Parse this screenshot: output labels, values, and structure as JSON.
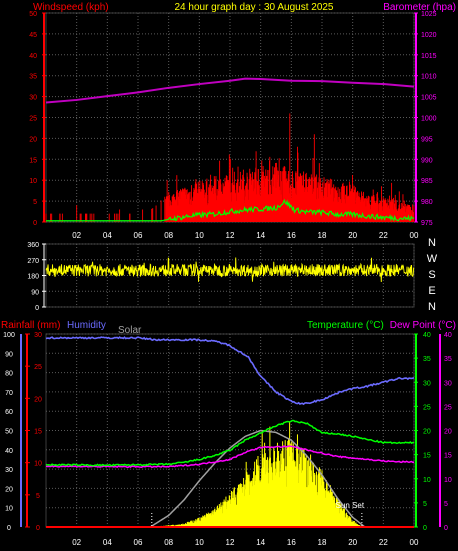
{
  "header": {
    "left_label": "Windspeed (kph)",
    "title": "24 hour graph day : 30 August 2025",
    "right_label": "Barometer (hpa)"
  },
  "colors": {
    "bg": "#000000",
    "grid": "#5a5a5a",
    "white": "#ffffff",
    "red": "#ff0000",
    "magenta": "#ff00ff",
    "yellow": "#ffff00",
    "green": "#00c800",
    "gust_green": "#00ff00",
    "blue": "#6b6bff",
    "gray": "#a0a0a0",
    "axis_dark": "#3c3c3c"
  },
  "x_ticks": [
    "02",
    "04",
    "06",
    "08",
    "10",
    "12",
    "14",
    "16",
    "18",
    "20",
    "22",
    "00"
  ],
  "chart_data": [
    {
      "type": "line",
      "name": "wind-baro",
      "x_hours_range": [
        0,
        24
      ],
      "left_axis": {
        "label": "Windspeed (kph)",
        "ticks": [
          "0",
          "5",
          "10",
          "15",
          "20",
          "25",
          "30",
          "35",
          "40",
          "45",
          "50"
        ],
        "range": [
          0,
          50
        ]
      },
      "right_axis": {
        "label": "Barometer (hpa)",
        "ticks": [
          "975",
          "980",
          "985",
          "990",
          "995",
          "1000",
          "1005",
          "1010",
          "1015",
          "1020",
          "1025"
        ],
        "range": [
          975,
          1025
        ]
      },
      "series": [
        {
          "key": "barometer",
          "axis": "right",
          "color": "magenta",
          "points": [
            [
              0,
              1003.6
            ],
            [
              2,
              1004.2
            ],
            [
              4,
              1005.1
            ],
            [
              6,
              1006.0
            ],
            [
              8,
              1007.1
            ],
            [
              10,
              1008.0
            ],
            [
              12,
              1008.8
            ],
            [
              13,
              1009.3
            ],
            [
              14,
              1009.2
            ],
            [
              16,
              1008.8
            ],
            [
              18,
              1008.7
            ],
            [
              20,
              1008.3
            ],
            [
              22,
              1008.0
            ],
            [
              24,
              1007.4
            ]
          ]
        },
        {
          "key": "wind_gust",
          "axis": "left",
          "color": "red",
          "style": "spiky",
          "envelope": [
            [
              0,
              2
            ],
            [
              6.5,
              2
            ],
            [
              7.2,
              4
            ],
            [
              8,
              7
            ],
            [
              9,
              9
            ],
            [
              10,
              10
            ],
            [
              11,
              11
            ],
            [
              12,
              12
            ],
            [
              13,
              13
            ],
            [
              14,
              13
            ],
            [
              15,
              14
            ],
            [
              16,
              13
            ],
            [
              17,
              12
            ],
            [
              18,
              11
            ],
            [
              19,
              10
            ],
            [
              20,
              9
            ],
            [
              21,
              7
            ],
            [
              22,
              6
            ],
            [
              23,
              5
            ],
            [
              24,
              4
            ]
          ],
          "spikes": [
            [
              0.3,
              2
            ],
            [
              0.9,
              2
            ],
            [
              2.0,
              4
            ],
            [
              2.6,
              2
            ],
            [
              4.8,
              3
            ],
            [
              6.3,
              3
            ],
            [
              7.9,
              10
            ],
            [
              13.7,
              12
            ],
            [
              15.9,
              26
            ],
            [
              16.4,
              18
            ],
            [
              17.5,
              21
            ]
          ]
        },
        {
          "key": "wind_avg",
          "axis": "left",
          "color": "gust_green",
          "points": [
            [
              0,
              0.3
            ],
            [
              7.5,
              0.3
            ],
            [
              8.5,
              0.9
            ],
            [
              9.5,
              1.5
            ],
            [
              11,
              1.9
            ],
            [
              12,
              2.5
            ],
            [
              13,
              2.9
            ],
            [
              14,
              3.1
            ],
            [
              15,
              3.4
            ],
            [
              15.6,
              4.9
            ],
            [
              16.2,
              2.9
            ],
            [
              17,
              2.4
            ],
            [
              18,
              2.3
            ],
            [
              19,
              1.8
            ],
            [
              20,
              1.8
            ],
            [
              21,
              1.4
            ],
            [
              22,
              1.1
            ],
            [
              23,
              0.9
            ],
            [
              24,
              0.8
            ]
          ]
        }
      ]
    },
    {
      "type": "line",
      "name": "wind-direction",
      "left_axis": {
        "ticks": [
          "360",
          "270",
          "180",
          "90",
          "0"
        ],
        "range": [
          0,
          360
        ]
      },
      "compass": [
        "N",
        "W",
        "S",
        "E",
        "N"
      ],
      "series": [
        {
          "key": "direction",
          "color": "yellow",
          "mean": 210,
          "spread": 35
        }
      ]
    },
    {
      "type": "line",
      "name": "rain-humidity-temp",
      "labels": {
        "rain": "Rainfall (mm)",
        "humidity": "Humidity",
        "solar": "Solar",
        "temp": "Temperature (°C)",
        "dew": "Dew Point (°C)",
        "sunset": "Sun Set"
      },
      "humidity_axis": {
        "ticks": [
          "0",
          "10",
          "20",
          "30",
          "40",
          "50",
          "60",
          "70",
          "80",
          "90",
          "100"
        ],
        "range": [
          0,
          100
        ]
      },
      "rain_axis": {
        "ticks": [
          "0",
          "5",
          "10",
          "15",
          "20",
          "25",
          "30"
        ],
        "range": [
          0,
          30
        ]
      },
      "temp_axis": {
        "ticks": [
          "0",
          "5",
          "10",
          "15",
          "20",
          "25",
          "30",
          "35",
          "40"
        ],
        "range": [
          0,
          40
        ]
      },
      "dew_axis": {
        "ticks": [
          "0",
          "5",
          "10",
          "15",
          "20",
          "25",
          "30",
          "35",
          "40"
        ],
        "range": [
          0,
          40
        ]
      },
      "series": [
        {
          "key": "humidity",
          "axis": "humidity",
          "color": "blue",
          "points": [
            [
              0,
              98
            ],
            [
              6,
              98
            ],
            [
              7.2,
              97
            ],
            [
              10,
              97
            ],
            [
              11.2,
              96
            ],
            [
              12,
              94
            ],
            [
              13.2,
              88
            ],
            [
              14,
              78
            ],
            [
              15,
              70
            ],
            [
              15.8,
              66
            ],
            [
              16.3,
              64
            ],
            [
              17,
              64
            ],
            [
              18,
              66
            ],
            [
              19.5,
              71
            ],
            [
              21,
              73
            ],
            [
              22,
              75
            ],
            [
              23,
              77
            ],
            [
              24,
              77
            ]
          ]
        },
        {
          "key": "temperature",
          "axis": "temp",
          "color": "green",
          "points": [
            [
              0,
              12.9
            ],
            [
              4,
              12.8
            ],
            [
              8,
              13.0
            ],
            [
              9,
              13.4
            ],
            [
              10,
              14.0
            ],
            [
              11,
              14.8
            ],
            [
              12,
              15.9
            ],
            [
              13,
              18.0
            ],
            [
              14,
              19.5
            ],
            [
              15,
              21.0
            ],
            [
              16,
              22.0
            ],
            [
              17,
              21.5
            ],
            [
              18,
              19.5
            ],
            [
              19,
              19.3
            ],
            [
              20,
              18.8
            ],
            [
              21,
              18.1
            ],
            [
              22,
              17.5
            ],
            [
              23,
              17.4
            ],
            [
              24,
              17.5
            ]
          ]
        },
        {
          "key": "dew_point",
          "axis": "temp",
          "color": "magenta",
          "points": [
            [
              0,
              12.6
            ],
            [
              4,
              12.5
            ],
            [
              8,
              12.5
            ],
            [
              10,
              13.0
            ],
            [
              12,
              14.0
            ],
            [
              13,
              15.5
            ],
            [
              14,
              16.5
            ],
            [
              15,
              16.6
            ],
            [
              16,
              16.7
            ],
            [
              17,
              16.0
            ],
            [
              18,
              15.3
            ],
            [
              19,
              14.6
            ],
            [
              20,
              14.3
            ],
            [
              21,
              14.0
            ],
            [
              22,
              13.7
            ],
            [
              23,
              13.5
            ],
            [
              24,
              13.5
            ]
          ]
        },
        {
          "key": "solar_max",
          "axis": "humidity",
          "color": "gray",
          "points": [
            [
              6.8,
              0
            ],
            [
              8,
              6
            ],
            [
              9,
              14
            ],
            [
              10,
              24
            ],
            [
              11,
              33
            ],
            [
              12,
              41
            ],
            [
              13,
              47
            ],
            [
              14,
              50
            ],
            [
              15,
              49
            ],
            [
              16,
              45
            ],
            [
              17,
              37
            ],
            [
              18,
              27
            ],
            [
              19,
              15
            ],
            [
              20,
              5
            ],
            [
              20.8,
              0
            ]
          ]
        },
        {
          "key": "solar",
          "axis": "humidity",
          "color": "yellow",
          "style": "spiky",
          "envelope": [
            [
              6.9,
              0
            ],
            [
              8,
              1
            ],
            [
              9,
              2
            ],
            [
              10,
              5
            ],
            [
              11,
              10
            ],
            [
              12,
              18
            ],
            [
              13,
              28
            ],
            [
              14,
              38
            ],
            [
              15,
              44
            ],
            [
              16,
              45
            ],
            [
              17,
              40
            ],
            [
              18,
              30
            ],
            [
              19,
              16
            ],
            [
              20,
              4
            ],
            [
              20.6,
              0
            ]
          ],
          "spikes": [
            [
              14.1,
              50
            ],
            [
              14.6,
              52
            ],
            [
              15.6,
              45
            ],
            [
              16.4,
              48
            ]
          ]
        },
        {
          "key": "rainfall",
          "axis": "rain",
          "color": "red",
          "points": [
            [
              0,
              0
            ],
            [
              24,
              0
            ]
          ]
        }
      ],
      "markers": {
        "sunrise_hour": 6.9,
        "sunset_hour": 20.6
      }
    }
  ]
}
